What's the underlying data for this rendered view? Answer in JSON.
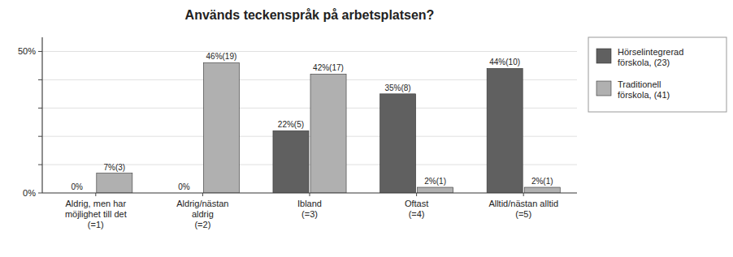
{
  "chart_data": {
    "type": "bar",
    "title": "Används teckenspråk på arbetsplatsen?",
    "categories": [
      "Aldrig, men har\nmöjlighet till det\n(=1)",
      "Aldrig/nästan\naldrig\n(=2)",
      "Ibland\n(=3)",
      "Oftast\n(=4)",
      "Alltid/nästan alltid\n(=5)"
    ],
    "series": [
      {
        "name": "Hörselintegrerad\nförskola, (23)",
        "color": "#606060",
        "values": [
          0,
          0,
          22,
          35,
          44
        ],
        "value_labels": [
          "0%",
          "0%",
          "22%(5)",
          "35%(8)",
          "44%(10)"
        ]
      },
      {
        "name": "Traditionell\nförskola, (41)",
        "color": "#b0b0b0",
        "values": [
          7,
          46,
          42,
          2,
          2
        ],
        "value_labels": [
          "7%(3)",
          "46%(19)",
          "42%(17)",
          "2%(1)",
          "2%(1)"
        ]
      }
    ],
    "ylim": [
      0,
      55
    ],
    "yticks": [
      {
        "value": 0,
        "label": "0%"
      },
      {
        "value": 10,
        "label": ""
      },
      {
        "value": 20,
        "label": ""
      },
      {
        "value": 30,
        "label": ""
      },
      {
        "value": 40,
        "label": ""
      },
      {
        "value": 50,
        "label": "50%"
      }
    ],
    "grid": true,
    "legend": "right",
    "data_labels": true
  }
}
